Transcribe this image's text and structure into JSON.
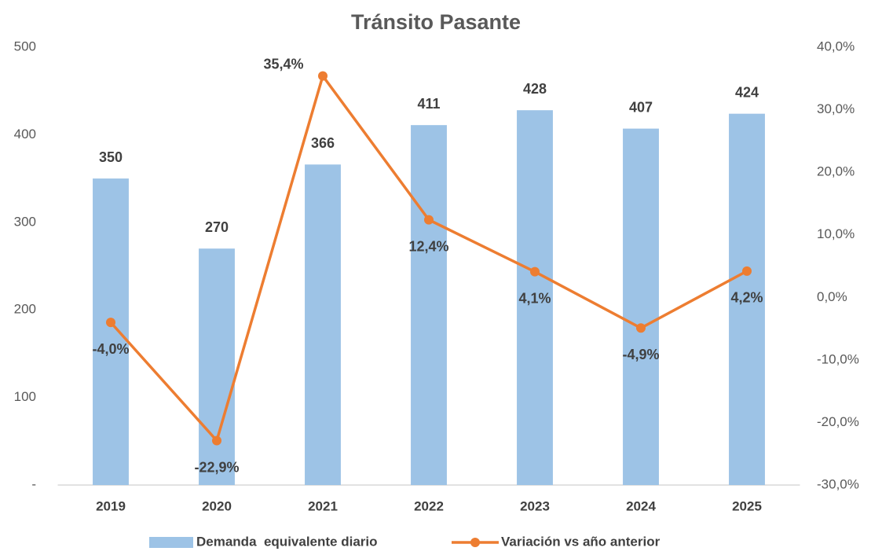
{
  "chart_data": {
    "type": "bar",
    "title": "Tránsito Pasante",
    "categories": [
      "2019",
      "2020",
      "2021",
      "2022",
      "2023",
      "2024",
      "2025"
    ],
    "series": [
      {
        "name": "Demanda  equivalente diario",
        "type": "bar",
        "color": "#9dc3e6",
        "values": [
          350,
          270,
          366,
          411,
          428,
          407,
          424
        ]
      },
      {
        "name": "Variación vs año anterior",
        "type": "line",
        "axis": "y2",
        "color": "#ed7d31",
        "values": [
          -4.0,
          -22.9,
          35.4,
          12.4,
          4.1,
          -4.9,
          4.2
        ],
        "value_labels": [
          "-4,0%",
          "-22,9%",
          "35,4%",
          "12,4%",
          "4,1%",
          "-4,9%",
          "4,2%"
        ]
      }
    ],
    "ylim": [
      0,
      500
    ],
    "yticks": [
      {
        "value": 0,
        "label": "-"
      },
      100,
      200,
      300,
      400,
      500
    ],
    "y2lim": [
      -30,
      40
    ],
    "y2ticks": [
      {
        "value": -30,
        "label": "-30,0%"
      },
      {
        "value": -20,
        "label": "-20,0%"
      },
      {
        "value": -10,
        "label": "-10,0%"
      },
      {
        "value": 0,
        "label": "0,0%"
      },
      {
        "value": 10,
        "label": "10,0%"
      },
      {
        "value": 20,
        "label": "20,0%"
      },
      {
        "value": 30,
        "label": "30,0%"
      },
      {
        "value": 40,
        "label": "40,0%"
      }
    ],
    "legend": "bottom"
  }
}
